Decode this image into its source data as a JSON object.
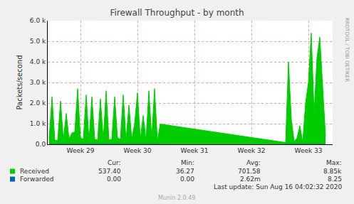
{
  "chart_data": {
    "type": "area",
    "title": "Firewall Throughput - by month",
    "y_label": "Packets/second",
    "x": [
      28.45,
      28.5,
      28.55,
      28.6,
      28.65,
      28.7,
      28.75,
      28.8,
      28.85,
      28.9,
      28.95,
      29.0,
      29.05,
      29.1,
      29.15,
      29.2,
      29.25,
      29.3,
      29.35,
      29.4,
      29.45,
      29.5,
      29.55,
      29.6,
      29.65,
      29.7,
      29.75,
      29.8,
      29.85,
      29.9,
      29.95,
      30.0,
      30.05,
      30.1,
      30.15,
      30.2,
      30.25,
      30.3,
      30.35,
      30.4,
      30.45,
      32.6,
      32.65,
      32.7,
      32.75,
      32.8,
      32.85,
      32.9,
      32.95,
      33.0,
      33.05,
      33.1,
      33.15,
      33.2,
      33.25,
      33.3
    ],
    "series": [
      {
        "name": "Received",
        "color": "#00cc00",
        "values": [
          250,
          2300,
          180,
          200,
          2100,
          220,
          1500,
          250,
          550,
          600,
          2700,
          300,
          250,
          2400,
          200,
          2300,
          250,
          200,
          2200,
          250,
          2600,
          200,
          250,
          2300,
          300,
          250,
          2400,
          200,
          1900,
          250,
          1000,
          2500,
          250,
          1400,
          200,
          2600,
          300,
          2700,
          150,
          1000,
          null,
          100,
          4000,
          1200,
          150,
          300,
          900,
          100,
          2000,
          3000,
          5400,
          1500,
          4200,
          5200,
          2800,
          400
        ]
      },
      {
        "name": "Forwarded",
        "color": "#0066b3",
        "values": [
          0,
          0,
          0,
          0,
          0,
          0,
          0,
          0,
          0,
          0,
          0,
          0,
          0,
          0,
          0,
          0,
          0,
          0,
          0,
          0,
          0,
          0,
          0,
          0,
          0,
          0,
          0,
          0,
          0,
          0,
          0,
          0,
          0,
          0,
          0,
          0,
          0,
          0,
          0,
          0,
          null,
          0,
          0,
          0,
          0,
          0,
          0,
          0,
          0,
          0,
          0,
          0,
          0,
          0,
          0,
          0
        ]
      }
    ],
    "xlim": [
      28.425,
      33.425
    ],
    "xticks": [
      {
        "value": 29,
        "label": "Week 29"
      },
      {
        "value": 30,
        "label": "Week 30"
      },
      {
        "value": 31,
        "label": "Week 31"
      },
      {
        "value": 32,
        "label": "Week 32"
      },
      {
        "value": 33,
        "label": "Week 33"
      }
    ],
    "ylim": [
      0,
      6000
    ],
    "yticks": [
      {
        "value": 0,
        "label": "0.0"
      },
      {
        "value": 1000,
        "label": "1.0 k"
      },
      {
        "value": 2000,
        "label": "2.0 k"
      },
      {
        "value": 3000,
        "label": "3.0 k"
      },
      {
        "value": 4000,
        "label": "4.0 k"
      },
      {
        "value": 5000,
        "label": "5.0 k"
      },
      {
        "value": 6000,
        "label": "6.0 k"
      }
    ],
    "grid": true,
    "legend_table": {
      "columns": [
        "Cur:",
        "Min:",
        "Avg:",
        "Max:"
      ],
      "rows": [
        [
          "537.40",
          "36.27",
          "701.58",
          "8.85k"
        ],
        [
          "0.00",
          "0.00",
          "2.62m",
          "8.25"
        ]
      ]
    },
    "last_update": "Last update: Sun Aug 16 04:02:32 2020",
    "footer": "Munin 2.0.49",
    "side_text": "RRDTOOL / TOBI OETIKER"
  }
}
